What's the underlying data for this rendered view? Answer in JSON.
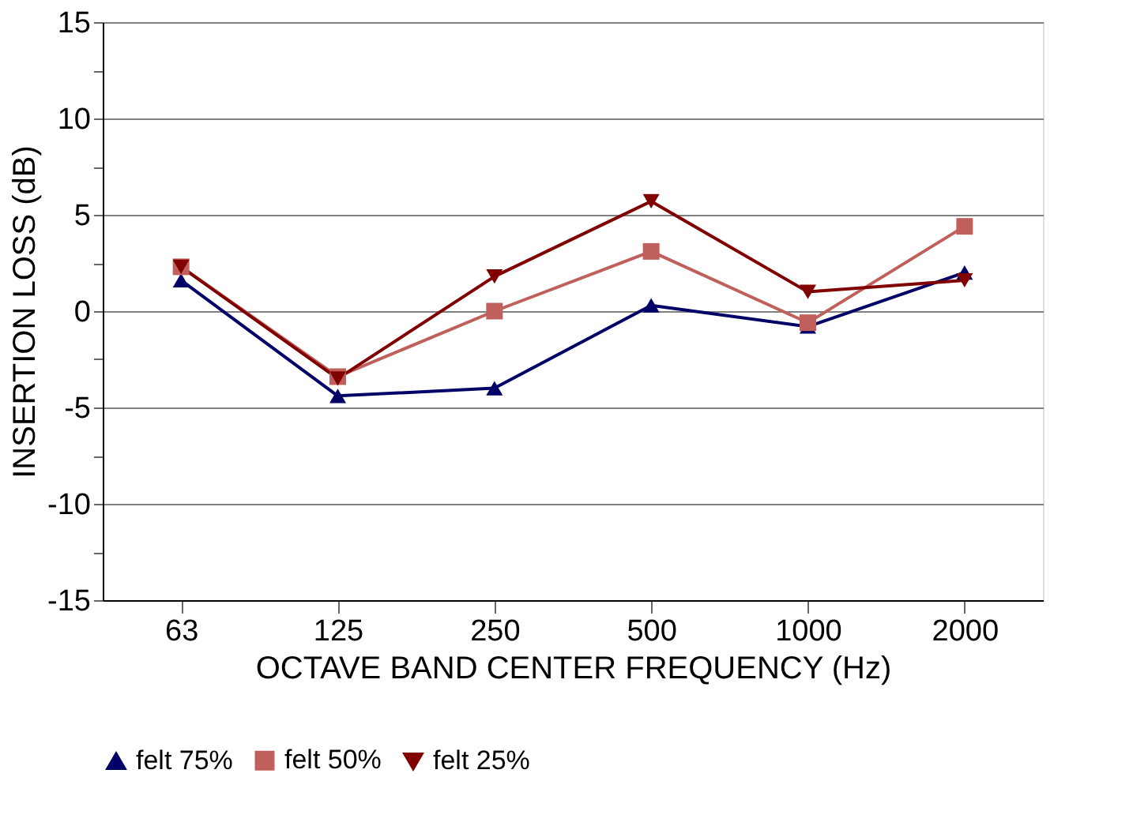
{
  "chart_data": {
    "type": "line",
    "xlabel": "OCTAVE BAND CENTER FREQUENCY (Hz)",
    "ylabel": "INSERTION LOSS (dB)",
    "categories": [
      "63",
      "125",
      "250",
      "500",
      "1000",
      "2000"
    ],
    "series": [
      {
        "name": "felt 75%",
        "color": "#000066",
        "marker": "triangle",
        "values": [
          1.6,
          -4.4,
          -4.0,
          0.3,
          -0.8,
          2.0
        ]
      },
      {
        "name": "felt 50%",
        "color": "#c0605c",
        "marker": "square",
        "values": [
          2.3,
          -3.4,
          0.0,
          3.1,
          -0.6,
          4.4
        ]
      },
      {
        "name": "felt 25%",
        "color": "#800000",
        "marker": "triangle-down",
        "values": [
          2.3,
          -3.5,
          1.8,
          5.7,
          1.0,
          1.6
        ]
      }
    ],
    "ylim": [
      -15,
      15
    ],
    "yticks": [
      -15,
      {
        "value": -12.5,
        "label": null
      },
      -10,
      {
        "value": -7.5,
        "label": null
      },
      -5,
      {
        "value": -2.5,
        "label": null
      },
      0,
      {
        "value": 2.5,
        "label": null
      },
      5,
      {
        "value": 7.5,
        "label": null
      },
      10,
      {
        "value": 12.5,
        "label": null
      },
      15
    ],
    "grid": "y",
    "legend": "bottom",
    "line_style": "solid"
  }
}
